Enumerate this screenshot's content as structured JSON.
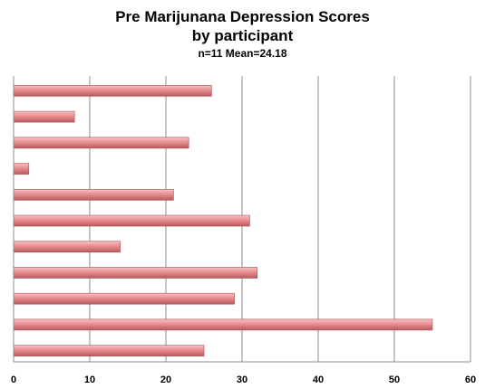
{
  "chart_data": {
    "type": "bar",
    "orientation": "horizontal",
    "title": "Pre Marijunana Depression Scores",
    "title_line2": "by participant",
    "subtitle": "n=11 Mean=24.18",
    "values": [
      26,
      8,
      23,
      2,
      21,
      31,
      14,
      32,
      29,
      55,
      25
    ],
    "xlim": [
      0,
      60
    ],
    "x_ticks": [
      "0",
      "10",
      "20",
      "30",
      "40",
      "50",
      "60"
    ],
    "grid": "vertical",
    "legend": "none",
    "bar_color": "#e8878a"
  }
}
